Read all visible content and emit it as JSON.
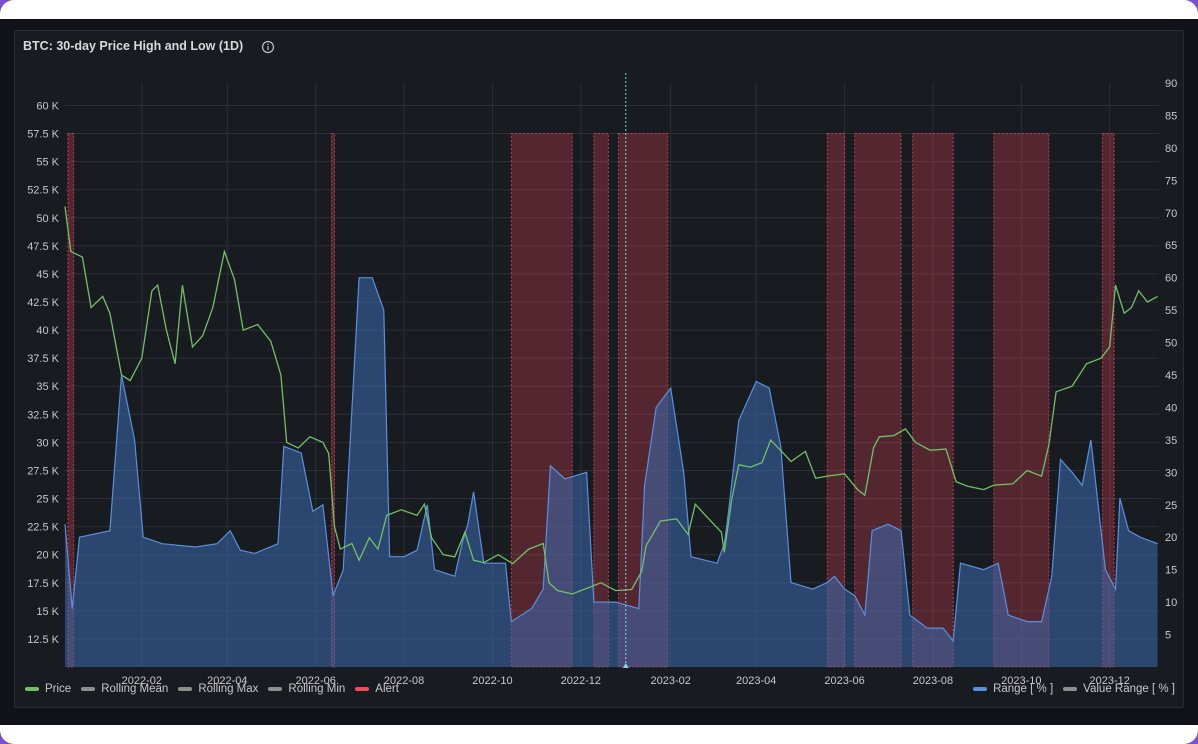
{
  "panel": {
    "title": "BTC: 30-day Price High and Low (1D)",
    "info_icon": "info-circle-icon"
  },
  "colors": {
    "price": "#73bf69",
    "range_fill": "#3d6bb0",
    "range_line": "#5a8fdc",
    "alert": "#f2495c",
    "grey": "#8e8e8e",
    "axis_text": "#c7c8ca",
    "grid": "#2c3038"
  },
  "legend": {
    "left": [
      {
        "name": "Price",
        "color": "#73bf69"
      },
      {
        "name": "Rolling Mean",
        "color": "#8e8e8e"
      },
      {
        "name": "Rolling Max",
        "color": "#8e8e8e"
      },
      {
        "name": "Rolling Min",
        "color": "#8e8e8e"
      },
      {
        "name": "Alert",
        "color": "#f2495c"
      }
    ],
    "right": [
      {
        "name": "Range [ % ]",
        "color": "#5a8fdc"
      },
      {
        "name": "Value Range [ % ]",
        "color": "#8e8e8e"
      }
    ]
  },
  "chart_data": {
    "type": "line",
    "title": "BTC: 30-day Price High and Low (1D)",
    "x_ticks": [
      "2022-02",
      "2022-04",
      "2022-06",
      "2022-08",
      "2022-10",
      "2022-12",
      "2023-02",
      "2023-04",
      "2023-06",
      "2023-08",
      "2023-10",
      "2023-12"
    ],
    "x_range": [
      "2021-12-10",
      "2024-01-04"
    ],
    "y_left": {
      "range": [
        10000,
        62000
      ],
      "ticks": [
        12500,
        15000,
        17500,
        20000,
        22500,
        25000,
        27500,
        30000,
        32500,
        35000,
        37500,
        40000,
        42500,
        45000,
        47500,
        50000,
        52500,
        55000,
        57500,
        60000
      ],
      "tick_labels": [
        "12.5 K",
        "15 K",
        "17.5 K",
        "20 K",
        "22.5 K",
        "25 K",
        "27.5 K",
        "30 K",
        "32.5 K",
        "35 K",
        "37.5 K",
        "40 K",
        "42.5 K",
        "45 K",
        "47.5 K",
        "50 K",
        "52.5 K",
        "55 K",
        "57.5 K",
        "60 K"
      ]
    },
    "y_right": {
      "range": [
        0,
        90
      ],
      "ticks": [
        5,
        10,
        15,
        20,
        25,
        30,
        35,
        40,
        45,
        50,
        55,
        60,
        65,
        70,
        75,
        80,
        85,
        90
      ],
      "tick_labels": [
        "5",
        "10",
        "15",
        "20",
        "25",
        "30",
        "35",
        "40",
        "45",
        "50",
        "55",
        "60",
        "65",
        "70",
        "75",
        "80",
        "85",
        "90"
      ]
    },
    "series": [
      {
        "name": "Price",
        "axis": "left",
        "points": [
          [
            "2021-12-10",
            51000
          ],
          [
            "2021-12-14",
            47000
          ],
          [
            "2021-12-22",
            46500
          ],
          [
            "2021-12-28",
            42000
          ],
          [
            "2022-01-05",
            43000
          ],
          [
            "2022-01-10",
            41500
          ],
          [
            "2022-01-18",
            36000
          ],
          [
            "2022-01-24",
            35500
          ],
          [
            "2022-02-01",
            37500
          ],
          [
            "2022-02-08",
            43500
          ],
          [
            "2022-02-12",
            44000
          ],
          [
            "2022-02-18",
            40000
          ],
          [
            "2022-02-24",
            37000
          ],
          [
            "2022-03-01",
            44000
          ],
          [
            "2022-03-08",
            38500
          ],
          [
            "2022-03-15",
            39500
          ],
          [
            "2022-03-22",
            42000
          ],
          [
            "2022-03-30",
            47000
          ],
          [
            "2022-04-06",
            44500
          ],
          [
            "2022-04-12",
            40000
          ],
          [
            "2022-04-22",
            40500
          ],
          [
            "2022-05-01",
            39000
          ],
          [
            "2022-05-08",
            36000
          ],
          [
            "2022-05-12",
            30000
          ],
          [
            "2022-05-20",
            29500
          ],
          [
            "2022-05-28",
            30500
          ],
          [
            "2022-06-06",
            30000
          ],
          [
            "2022-06-10",
            29000
          ],
          [
            "2022-06-14",
            22500
          ],
          [
            "2022-06-18",
            20500
          ],
          [
            "2022-06-26",
            21000
          ],
          [
            "2022-07-01",
            19500
          ],
          [
            "2022-07-08",
            21500
          ],
          [
            "2022-07-14",
            20500
          ],
          [
            "2022-07-20",
            23500
          ],
          [
            "2022-07-30",
            24000
          ],
          [
            "2022-08-10",
            23500
          ],
          [
            "2022-08-15",
            24500
          ],
          [
            "2022-08-20",
            21500
          ],
          [
            "2022-08-28",
            20000
          ],
          [
            "2022-09-05",
            19800
          ],
          [
            "2022-09-12",
            22000
          ],
          [
            "2022-09-18",
            19500
          ],
          [
            "2022-09-25",
            19300
          ],
          [
            "2022-10-05",
            20000
          ],
          [
            "2022-10-15",
            19200
          ],
          [
            "2022-10-26",
            20500
          ],
          [
            "2022-11-05",
            21000
          ],
          [
            "2022-11-09",
            17500
          ],
          [
            "2022-11-15",
            16800
          ],
          [
            "2022-11-25",
            16500
          ],
          [
            "2022-12-05",
            17000
          ],
          [
            "2022-12-15",
            17500
          ],
          [
            "2022-12-25",
            16800
          ],
          [
            "2023-01-05",
            16900
          ],
          [
            "2023-01-12",
            18500
          ],
          [
            "2023-01-15",
            20800
          ],
          [
            "2023-01-25",
            23000
          ],
          [
            "2023-02-05",
            23200
          ],
          [
            "2023-02-13",
            21800
          ],
          [
            "2023-02-18",
            24500
          ],
          [
            "2023-02-25",
            23500
          ],
          [
            "2023-03-08",
            22000
          ],
          [
            "2023-03-10",
            20200
          ],
          [
            "2023-03-15",
            24800
          ],
          [
            "2023-03-20",
            28000
          ],
          [
            "2023-03-28",
            27800
          ],
          [
            "2023-04-05",
            28200
          ],
          [
            "2023-04-11",
            30200
          ],
          [
            "2023-04-20",
            29000
          ],
          [
            "2023-04-25",
            28300
          ],
          [
            "2023-05-05",
            29200
          ],
          [
            "2023-05-12",
            26800
          ],
          [
            "2023-05-20",
            27000
          ],
          [
            "2023-06-01",
            27200
          ],
          [
            "2023-06-10",
            25800
          ],
          [
            "2023-06-15",
            25300
          ],
          [
            "2023-06-21",
            29500
          ],
          [
            "2023-06-25",
            30500
          ],
          [
            "2023-07-05",
            30600
          ],
          [
            "2023-07-13",
            31200
          ],
          [
            "2023-07-20",
            30000
          ],
          [
            "2023-07-30",
            29300
          ],
          [
            "2023-08-10",
            29400
          ],
          [
            "2023-08-17",
            26500
          ],
          [
            "2023-08-25",
            26100
          ],
          [
            "2023-09-05",
            25800
          ],
          [
            "2023-09-12",
            26200
          ],
          [
            "2023-09-25",
            26300
          ],
          [
            "2023-10-05",
            27500
          ],
          [
            "2023-10-15",
            27000
          ],
          [
            "2023-10-20",
            29800
          ],
          [
            "2023-10-25",
            34500
          ],
          [
            "2023-11-05",
            35000
          ],
          [
            "2023-11-15",
            37000
          ],
          [
            "2023-11-25",
            37500
          ],
          [
            "2023-12-01",
            38500
          ],
          [
            "2023-12-05",
            44000
          ],
          [
            "2023-12-11",
            41500
          ],
          [
            "2023-12-16",
            42000
          ],
          [
            "2023-12-21",
            43500
          ],
          [
            "2023-12-27",
            42500
          ],
          [
            "2024-01-03",
            43000
          ]
        ]
      },
      {
        "name": "Range [ % ]",
        "axis": "right",
        "points": [
          [
            "2021-12-10",
            22
          ],
          [
            "2021-12-15",
            9
          ],
          [
            "2021-12-20",
            20
          ],
          [
            "2022-01-10",
            21
          ],
          [
            "2022-01-18",
            45
          ],
          [
            "2022-01-27",
            35
          ],
          [
            "2022-02-02",
            20
          ],
          [
            "2022-02-15",
            19
          ],
          [
            "2022-03-10",
            18.5
          ],
          [
            "2022-03-25",
            19
          ],
          [
            "2022-04-03",
            21
          ],
          [
            "2022-04-10",
            18
          ],
          [
            "2022-04-20",
            17.5
          ],
          [
            "2022-05-06",
            19
          ],
          [
            "2022-05-10",
            34
          ],
          [
            "2022-05-22",
            33
          ],
          [
            "2022-05-30",
            24
          ],
          [
            "2022-06-06",
            25
          ],
          [
            "2022-06-13",
            11
          ],
          [
            "2022-06-20",
            15
          ],
          [
            "2022-07-01",
            60
          ],
          [
            "2022-07-10",
            60
          ],
          [
            "2022-07-18",
            55
          ],
          [
            "2022-07-22",
            17
          ],
          [
            "2022-08-01",
            17
          ],
          [
            "2022-08-10",
            18
          ],
          [
            "2022-08-17",
            25
          ],
          [
            "2022-08-22",
            15
          ],
          [
            "2022-09-05",
            14
          ],
          [
            "2022-09-10",
            19
          ],
          [
            "2022-09-14",
            22
          ],
          [
            "2022-09-18",
            27
          ],
          [
            "2022-09-25",
            16
          ],
          [
            "2022-10-10",
            16
          ],
          [
            "2022-10-14",
            7
          ],
          [
            "2022-10-28",
            9
          ],
          [
            "2022-11-05",
            12
          ],
          [
            "2022-11-10",
            31
          ],
          [
            "2022-11-20",
            29
          ],
          [
            "2022-12-05",
            30
          ],
          [
            "2022-12-10",
            10
          ],
          [
            "2022-12-25",
            10
          ],
          [
            "2023-01-10",
            9
          ],
          [
            "2023-01-14",
            28
          ],
          [
            "2023-01-22",
            40
          ],
          [
            "2023-02-01",
            43
          ],
          [
            "2023-02-10",
            30
          ],
          [
            "2023-02-15",
            17
          ],
          [
            "2023-03-05",
            16
          ],
          [
            "2023-03-10",
            19
          ],
          [
            "2023-03-13",
            24
          ],
          [
            "2023-03-20",
            38
          ],
          [
            "2023-04-01",
            44
          ],
          [
            "2023-04-10",
            43
          ],
          [
            "2023-04-18",
            34
          ],
          [
            "2023-04-25",
            13
          ],
          [
            "2023-05-10",
            12
          ],
          [
            "2023-05-20",
            13
          ],
          [
            "2023-05-25",
            14
          ],
          [
            "2023-06-01",
            12
          ],
          [
            "2023-06-08",
            11
          ],
          [
            "2023-06-15",
            8
          ],
          [
            "2023-06-20",
            21
          ],
          [
            "2023-07-01",
            22
          ],
          [
            "2023-07-10",
            21
          ],
          [
            "2023-07-16",
            8
          ],
          [
            "2023-07-28",
            6
          ],
          [
            "2023-08-08",
            6
          ],
          [
            "2023-08-15",
            4
          ],
          [
            "2023-08-20",
            16
          ],
          [
            "2023-09-05",
            15
          ],
          [
            "2023-09-15",
            16
          ],
          [
            "2023-09-22",
            8
          ],
          [
            "2023-10-05",
            7
          ],
          [
            "2023-10-15",
            7
          ],
          [
            "2023-10-22",
            14
          ],
          [
            "2023-10-28",
            32
          ],
          [
            "2023-11-05",
            30
          ],
          [
            "2023-11-12",
            28
          ],
          [
            "2023-11-18",
            35
          ],
          [
            "2023-11-28",
            15
          ],
          [
            "2023-12-05",
            12
          ],
          [
            "2023-12-08",
            26
          ],
          [
            "2023-12-14",
            21
          ],
          [
            "2023-12-22",
            20
          ],
          [
            "2024-01-03",
            19
          ]
        ]
      }
    ],
    "alert_periods": [
      [
        "2021-12-12",
        "2021-12-16"
      ],
      [
        "2022-06-12",
        "2022-06-14"
      ],
      [
        "2022-10-14",
        "2022-11-25"
      ],
      [
        "2022-12-10",
        "2022-12-20"
      ],
      [
        "2022-12-27",
        "2023-01-30"
      ],
      [
        "2023-05-20",
        "2023-06-01"
      ],
      [
        "2023-06-08",
        "2023-07-10"
      ],
      [
        "2023-07-18",
        "2023-08-15"
      ],
      [
        "2023-09-12",
        "2023-10-20"
      ],
      [
        "2023-11-26",
        "2023-12-04"
      ]
    ],
    "cursor_x": "2023-01-01",
    "grid": true,
    "legend_position": "bottom"
  }
}
